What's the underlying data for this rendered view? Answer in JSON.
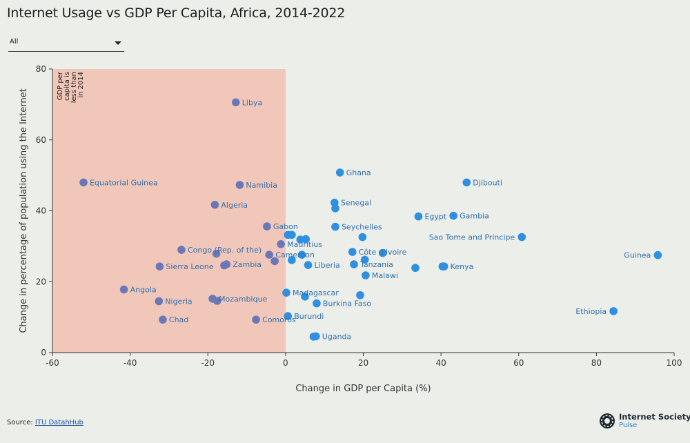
{
  "title": "Internet Usage vs GDP Per Capita, Africa, 2014-2022",
  "filter": {
    "selected": "All"
  },
  "source": {
    "label": "Source:",
    "link": "ITU DatahHub"
  },
  "logo": {
    "name": "Internet Society",
    "sub": "Pulse"
  },
  "colors": {
    "point": "#2f8fe0",
    "label": "#2f6fb0",
    "shade": "#f1c7b9",
    "background": "#ebeee9"
  },
  "chart_data": {
    "type": "scatter",
    "title": "Internet Usage vs GDP Per Capita, Africa, 2014-2022",
    "xlabel": "Change in GDP per Capita (%)",
    "ylabel": "Change in percentage of population using the Internet",
    "xlim": [
      -60,
      100
    ],
    "ylim": [
      0,
      80
    ],
    "xticks": [
      -60,
      -40,
      -20,
      0,
      20,
      40,
      60,
      80,
      100
    ],
    "yticks": [
      0,
      20,
      40,
      60,
      80
    ],
    "shaded_region": {
      "x_from": -60,
      "x_to": 0,
      "annotation": [
        "GDP per",
        "capita is",
        "less than",
        "in 2014"
      ]
    },
    "points": [
      {
        "x": -12.8,
        "y": 70.6,
        "label": "Libya"
      },
      {
        "x": -52.0,
        "y": 48.0,
        "label": "Equatorial Guinea"
      },
      {
        "x": -11.8,
        "y": 47.3,
        "label": "Namibia"
      },
      {
        "x": -18.2,
        "y": 41.7,
        "label": "Algeria"
      },
      {
        "x": -4.8,
        "y": 35.6,
        "label": "Gabon"
      },
      {
        "x": 0.6,
        "y": 33.2,
        "label": ""
      },
      {
        "x": 1.6,
        "y": 33.2,
        "label": ""
      },
      {
        "x": 3.8,
        "y": 31.9,
        "label": ""
      },
      {
        "x": 5.2,
        "y": 32.0,
        "label": ""
      },
      {
        "x": -1.2,
        "y": 30.6,
        "label": "Mauritius"
      },
      {
        "x": -26.8,
        "y": 29.0,
        "label": "Congo (Rep. of the)"
      },
      {
        "x": -17.8,
        "y": 27.9,
        "label": ""
      },
      {
        "x": -4.2,
        "y": 27.6,
        "label": "Cameroon"
      },
      {
        "x": -2.8,
        "y": 25.8,
        "label": ""
      },
      {
        "x": 1.6,
        "y": 26.1,
        "label": ""
      },
      {
        "x": 4.2,
        "y": 27.6,
        "label": ""
      },
      {
        "x": -15.2,
        "y": 24.9,
        "label": "Zambia"
      },
      {
        "x": -15.8,
        "y": 24.6,
        "label": ""
      },
      {
        "x": -32.4,
        "y": 24.3,
        "label": "Sierra Leone"
      },
      {
        "x": 5.8,
        "y": 24.7,
        "label": "Liberia"
      },
      {
        "x": 14.0,
        "y": 50.8,
        "label": "Ghana"
      },
      {
        "x": 46.6,
        "y": 48.0,
        "label": "Djibouti"
      },
      {
        "x": 12.6,
        "y": 42.3,
        "label": "Senegal"
      },
      {
        "x": 12.8,
        "y": 40.7,
        "label": ""
      },
      {
        "x": 43.2,
        "y": 38.6,
        "label": "Gambia"
      },
      {
        "x": 34.2,
        "y": 38.4,
        "label": "Egypt"
      },
      {
        "x": 12.8,
        "y": 35.5,
        "label": "Seychelles"
      },
      {
        "x": 19.8,
        "y": 32.6,
        "label": ""
      },
      {
        "x": 60.8,
        "y": 32.6,
        "label": "Sao Tome and Principe"
      },
      {
        "x": 17.2,
        "y": 28.4,
        "label": "Côte d'Ivoire"
      },
      {
        "x": 25.0,
        "y": 28.1,
        "label": ""
      },
      {
        "x": 20.4,
        "y": 26.2,
        "label": ""
      },
      {
        "x": 17.6,
        "y": 24.9,
        "label": "Tanzania"
      },
      {
        "x": 33.4,
        "y": 23.9,
        "label": ""
      },
      {
        "x": 40.8,
        "y": 24.3,
        "label": "Kenya"
      },
      {
        "x": 40.4,
        "y": 24.3,
        "label": ""
      },
      {
        "x": 20.6,
        "y": 21.8,
        "label": "Malawi"
      },
      {
        "x": 95.8,
        "y": 27.5,
        "label": "Guinea"
      },
      {
        "x": -41.6,
        "y": 17.8,
        "label": "Angola"
      },
      {
        "x": -32.6,
        "y": 14.5,
        "label": "Nigeria"
      },
      {
        "x": -18.8,
        "y": 15.2,
        "label": "Mozambique"
      },
      {
        "x": -17.6,
        "y": 14.6,
        "label": ""
      },
      {
        "x": -31.6,
        "y": 9.3,
        "label": "Chad"
      },
      {
        "x": -7.6,
        "y": 9.3,
        "label": "Comoros"
      },
      {
        "x": 0.2,
        "y": 16.9,
        "label": "Madagascar"
      },
      {
        "x": 5.0,
        "y": 15.8,
        "label": ""
      },
      {
        "x": 8.0,
        "y": 13.9,
        "label": "Burkina Faso"
      },
      {
        "x": 19.2,
        "y": 16.2,
        "label": ""
      },
      {
        "x": 0.6,
        "y": 10.3,
        "label": "Burundi"
      },
      {
        "x": 7.2,
        "y": 4.5,
        "label": ""
      },
      {
        "x": 7.8,
        "y": 4.6,
        "label": "Uganda"
      },
      {
        "x": 84.4,
        "y": 11.7,
        "label": "Ethiopia"
      }
    ]
  }
}
